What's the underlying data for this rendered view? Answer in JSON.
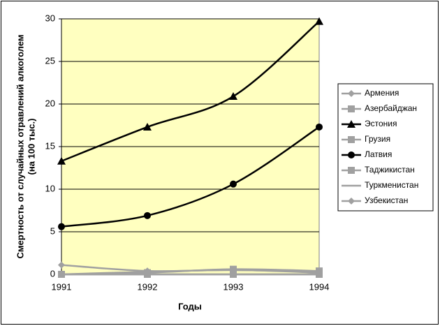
{
  "chart_data": {
    "type": "line",
    "smooth": true,
    "grid": true,
    "xlabel": "Годы",
    "ylabel": [
      "Смертность от случайных отравлений алкоголем",
      "(на 100 тыс.)"
    ],
    "categories": [
      "1991",
      "1992",
      "1993",
      "1994"
    ],
    "ylim": [
      0,
      30
    ],
    "yticks": [
      0,
      5,
      10,
      15,
      20,
      25,
      30
    ],
    "plot_background": "#ffffc0",
    "legend": "right",
    "series": [
      {
        "name": "Армения",
        "color": "#a0a0a0",
        "marker": "diamond",
        "values": [
          0,
          0.3,
          0.5,
          0.2
        ]
      },
      {
        "name": "Азербайджан",
        "color": "#a0a0a0",
        "marker": "square",
        "values": [
          0,
          0.2,
          0.6,
          0.4
        ]
      },
      {
        "name": "Эстония",
        "color": "#000000",
        "marker": "triangle",
        "values": [
          13.3,
          17.3,
          20.9,
          29.7
        ]
      },
      {
        "name": "Грузия",
        "color": "#a0a0a0",
        "marker": "square",
        "values": [
          0,
          0,
          0,
          0
        ]
      },
      {
        "name": "Латвия",
        "color": "#000000",
        "marker": "circle",
        "values": [
          5.6,
          6.9,
          10.6,
          17.3
        ]
      },
      {
        "name": "Таджикистан",
        "color": "#a0a0a0",
        "marker": "square",
        "values": [
          0,
          0,
          0,
          0
        ]
      },
      {
        "name": "Туркменистан",
        "color": "#a0a0a0",
        "marker": "none",
        "values": [
          0,
          0,
          0,
          0
        ]
      },
      {
        "name": "Узбекистан",
        "color": "#a0a0a0",
        "marker": "diamond",
        "values": [
          1.1,
          0.4,
          0.5,
          0.3
        ]
      }
    ]
  }
}
